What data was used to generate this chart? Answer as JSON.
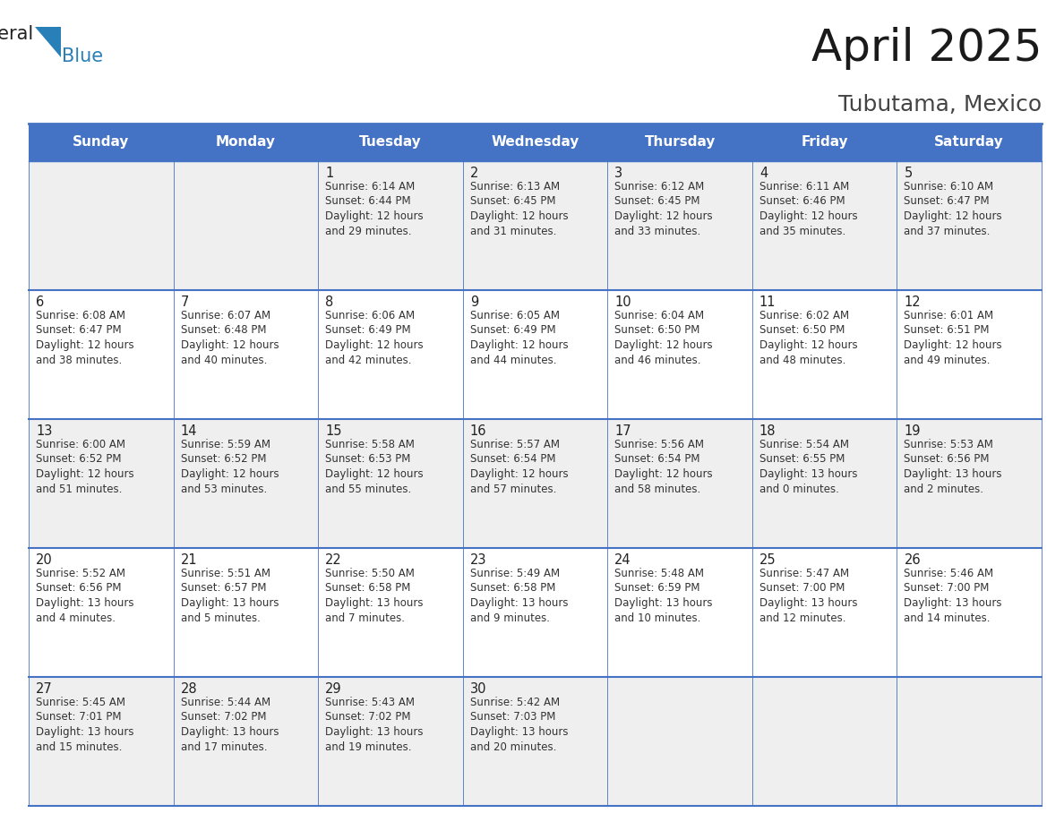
{
  "title": "April 2025",
  "subtitle": "Tubutama, Mexico",
  "days_of_week": [
    "Sunday",
    "Monday",
    "Tuesday",
    "Wednesday",
    "Thursday",
    "Friday",
    "Saturday"
  ],
  "header_bg": "#4472C4",
  "header_text_color": "#FFFFFF",
  "cell_bg_odd": "#EFEFEF",
  "cell_bg_even": "#FFFFFF",
  "cell_text_color": "#333333",
  "border_color": "#4472C4",
  "logo_black": "#222222",
  "logo_blue": "#2980B9",
  "weeks": [
    [
      {
        "day": "",
        "info": ""
      },
      {
        "day": "",
        "info": ""
      },
      {
        "day": "1",
        "info": "Sunrise: 6:14 AM\nSunset: 6:44 PM\nDaylight: 12 hours\nand 29 minutes."
      },
      {
        "day": "2",
        "info": "Sunrise: 6:13 AM\nSunset: 6:45 PM\nDaylight: 12 hours\nand 31 minutes."
      },
      {
        "day": "3",
        "info": "Sunrise: 6:12 AM\nSunset: 6:45 PM\nDaylight: 12 hours\nand 33 minutes."
      },
      {
        "day": "4",
        "info": "Sunrise: 6:11 AM\nSunset: 6:46 PM\nDaylight: 12 hours\nand 35 minutes."
      },
      {
        "day": "5",
        "info": "Sunrise: 6:10 AM\nSunset: 6:47 PM\nDaylight: 12 hours\nand 37 minutes."
      }
    ],
    [
      {
        "day": "6",
        "info": "Sunrise: 6:08 AM\nSunset: 6:47 PM\nDaylight: 12 hours\nand 38 minutes."
      },
      {
        "day": "7",
        "info": "Sunrise: 6:07 AM\nSunset: 6:48 PM\nDaylight: 12 hours\nand 40 minutes."
      },
      {
        "day": "8",
        "info": "Sunrise: 6:06 AM\nSunset: 6:49 PM\nDaylight: 12 hours\nand 42 minutes."
      },
      {
        "day": "9",
        "info": "Sunrise: 6:05 AM\nSunset: 6:49 PM\nDaylight: 12 hours\nand 44 minutes."
      },
      {
        "day": "10",
        "info": "Sunrise: 6:04 AM\nSunset: 6:50 PM\nDaylight: 12 hours\nand 46 minutes."
      },
      {
        "day": "11",
        "info": "Sunrise: 6:02 AM\nSunset: 6:50 PM\nDaylight: 12 hours\nand 48 minutes."
      },
      {
        "day": "12",
        "info": "Sunrise: 6:01 AM\nSunset: 6:51 PM\nDaylight: 12 hours\nand 49 minutes."
      }
    ],
    [
      {
        "day": "13",
        "info": "Sunrise: 6:00 AM\nSunset: 6:52 PM\nDaylight: 12 hours\nand 51 minutes."
      },
      {
        "day": "14",
        "info": "Sunrise: 5:59 AM\nSunset: 6:52 PM\nDaylight: 12 hours\nand 53 minutes."
      },
      {
        "day": "15",
        "info": "Sunrise: 5:58 AM\nSunset: 6:53 PM\nDaylight: 12 hours\nand 55 minutes."
      },
      {
        "day": "16",
        "info": "Sunrise: 5:57 AM\nSunset: 6:54 PM\nDaylight: 12 hours\nand 57 minutes."
      },
      {
        "day": "17",
        "info": "Sunrise: 5:56 AM\nSunset: 6:54 PM\nDaylight: 12 hours\nand 58 minutes."
      },
      {
        "day": "18",
        "info": "Sunrise: 5:54 AM\nSunset: 6:55 PM\nDaylight: 13 hours\nand 0 minutes."
      },
      {
        "day": "19",
        "info": "Sunrise: 5:53 AM\nSunset: 6:56 PM\nDaylight: 13 hours\nand 2 minutes."
      }
    ],
    [
      {
        "day": "20",
        "info": "Sunrise: 5:52 AM\nSunset: 6:56 PM\nDaylight: 13 hours\nand 4 minutes."
      },
      {
        "day": "21",
        "info": "Sunrise: 5:51 AM\nSunset: 6:57 PM\nDaylight: 13 hours\nand 5 minutes."
      },
      {
        "day": "22",
        "info": "Sunrise: 5:50 AM\nSunset: 6:58 PM\nDaylight: 13 hours\nand 7 minutes."
      },
      {
        "day": "23",
        "info": "Sunrise: 5:49 AM\nSunset: 6:58 PM\nDaylight: 13 hours\nand 9 minutes."
      },
      {
        "day": "24",
        "info": "Sunrise: 5:48 AM\nSunset: 6:59 PM\nDaylight: 13 hours\nand 10 minutes."
      },
      {
        "day": "25",
        "info": "Sunrise: 5:47 AM\nSunset: 7:00 PM\nDaylight: 13 hours\nand 12 minutes."
      },
      {
        "day": "26",
        "info": "Sunrise: 5:46 AM\nSunset: 7:00 PM\nDaylight: 13 hours\nand 14 minutes."
      }
    ],
    [
      {
        "day": "27",
        "info": "Sunrise: 5:45 AM\nSunset: 7:01 PM\nDaylight: 13 hours\nand 15 minutes."
      },
      {
        "day": "28",
        "info": "Sunrise: 5:44 AM\nSunset: 7:02 PM\nDaylight: 13 hours\nand 17 minutes."
      },
      {
        "day": "29",
        "info": "Sunrise: 5:43 AM\nSunset: 7:02 PM\nDaylight: 13 hours\nand 19 minutes."
      },
      {
        "day": "30",
        "info": "Sunrise: 5:42 AM\nSunset: 7:03 PM\nDaylight: 13 hours\nand 20 minutes."
      },
      {
        "day": "",
        "info": ""
      },
      {
        "day": "",
        "info": ""
      },
      {
        "day": "",
        "info": ""
      }
    ]
  ],
  "figsize": [
    11.88,
    9.18
  ],
  "dpi": 100
}
